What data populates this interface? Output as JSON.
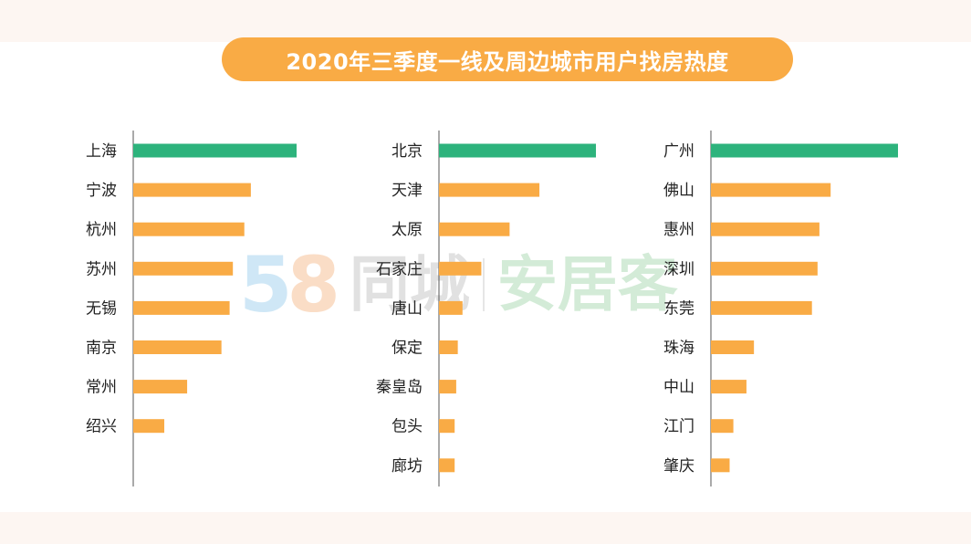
{
  "title": "2020年三季度一线及周边城市用户找房热度",
  "watermark": {
    "digit1": "5",
    "digit2": "8",
    "brand": "同城",
    "product": "安居客"
  },
  "colors": {
    "highlight": "#2db37c",
    "bar": "#f9ab45",
    "axis": "#555555",
    "label": "#222222"
  },
  "chart_data": [
    {
      "type": "bar",
      "orientation": "horizontal",
      "categories": [
        "上海",
        "宁波",
        "杭州",
        "苏州",
        "无锡",
        "南京",
        "常州",
        "绍兴"
      ],
      "values": [
        100,
        72,
        68,
        61,
        59,
        54,
        33,
        19
      ],
      "highlight_index": 0,
      "xlim": [
        0,
        100
      ]
    },
    {
      "type": "bar",
      "orientation": "horizontal",
      "categories": [
        "北京",
        "天津",
        "太原",
        "石家庄",
        "唐山",
        "保定",
        "秦皇岛",
        "包头",
        "廊坊"
      ],
      "values": [
        100,
        64,
        45,
        27,
        15,
        12,
        11,
        10,
        10
      ],
      "highlight_index": 0,
      "xlim": [
        0,
        100
      ]
    },
    {
      "type": "bar",
      "orientation": "horizontal",
      "categories": [
        "广州",
        "佛山",
        "惠州",
        "深圳",
        "东莞",
        "珠海",
        "中山",
        "江门",
        "肇庆"
      ],
      "values": [
        100,
        64,
        58,
        57,
        54,
        23,
        19,
        12,
        10
      ],
      "highlight_index": 0,
      "xlim": [
        0,
        100
      ]
    }
  ]
}
